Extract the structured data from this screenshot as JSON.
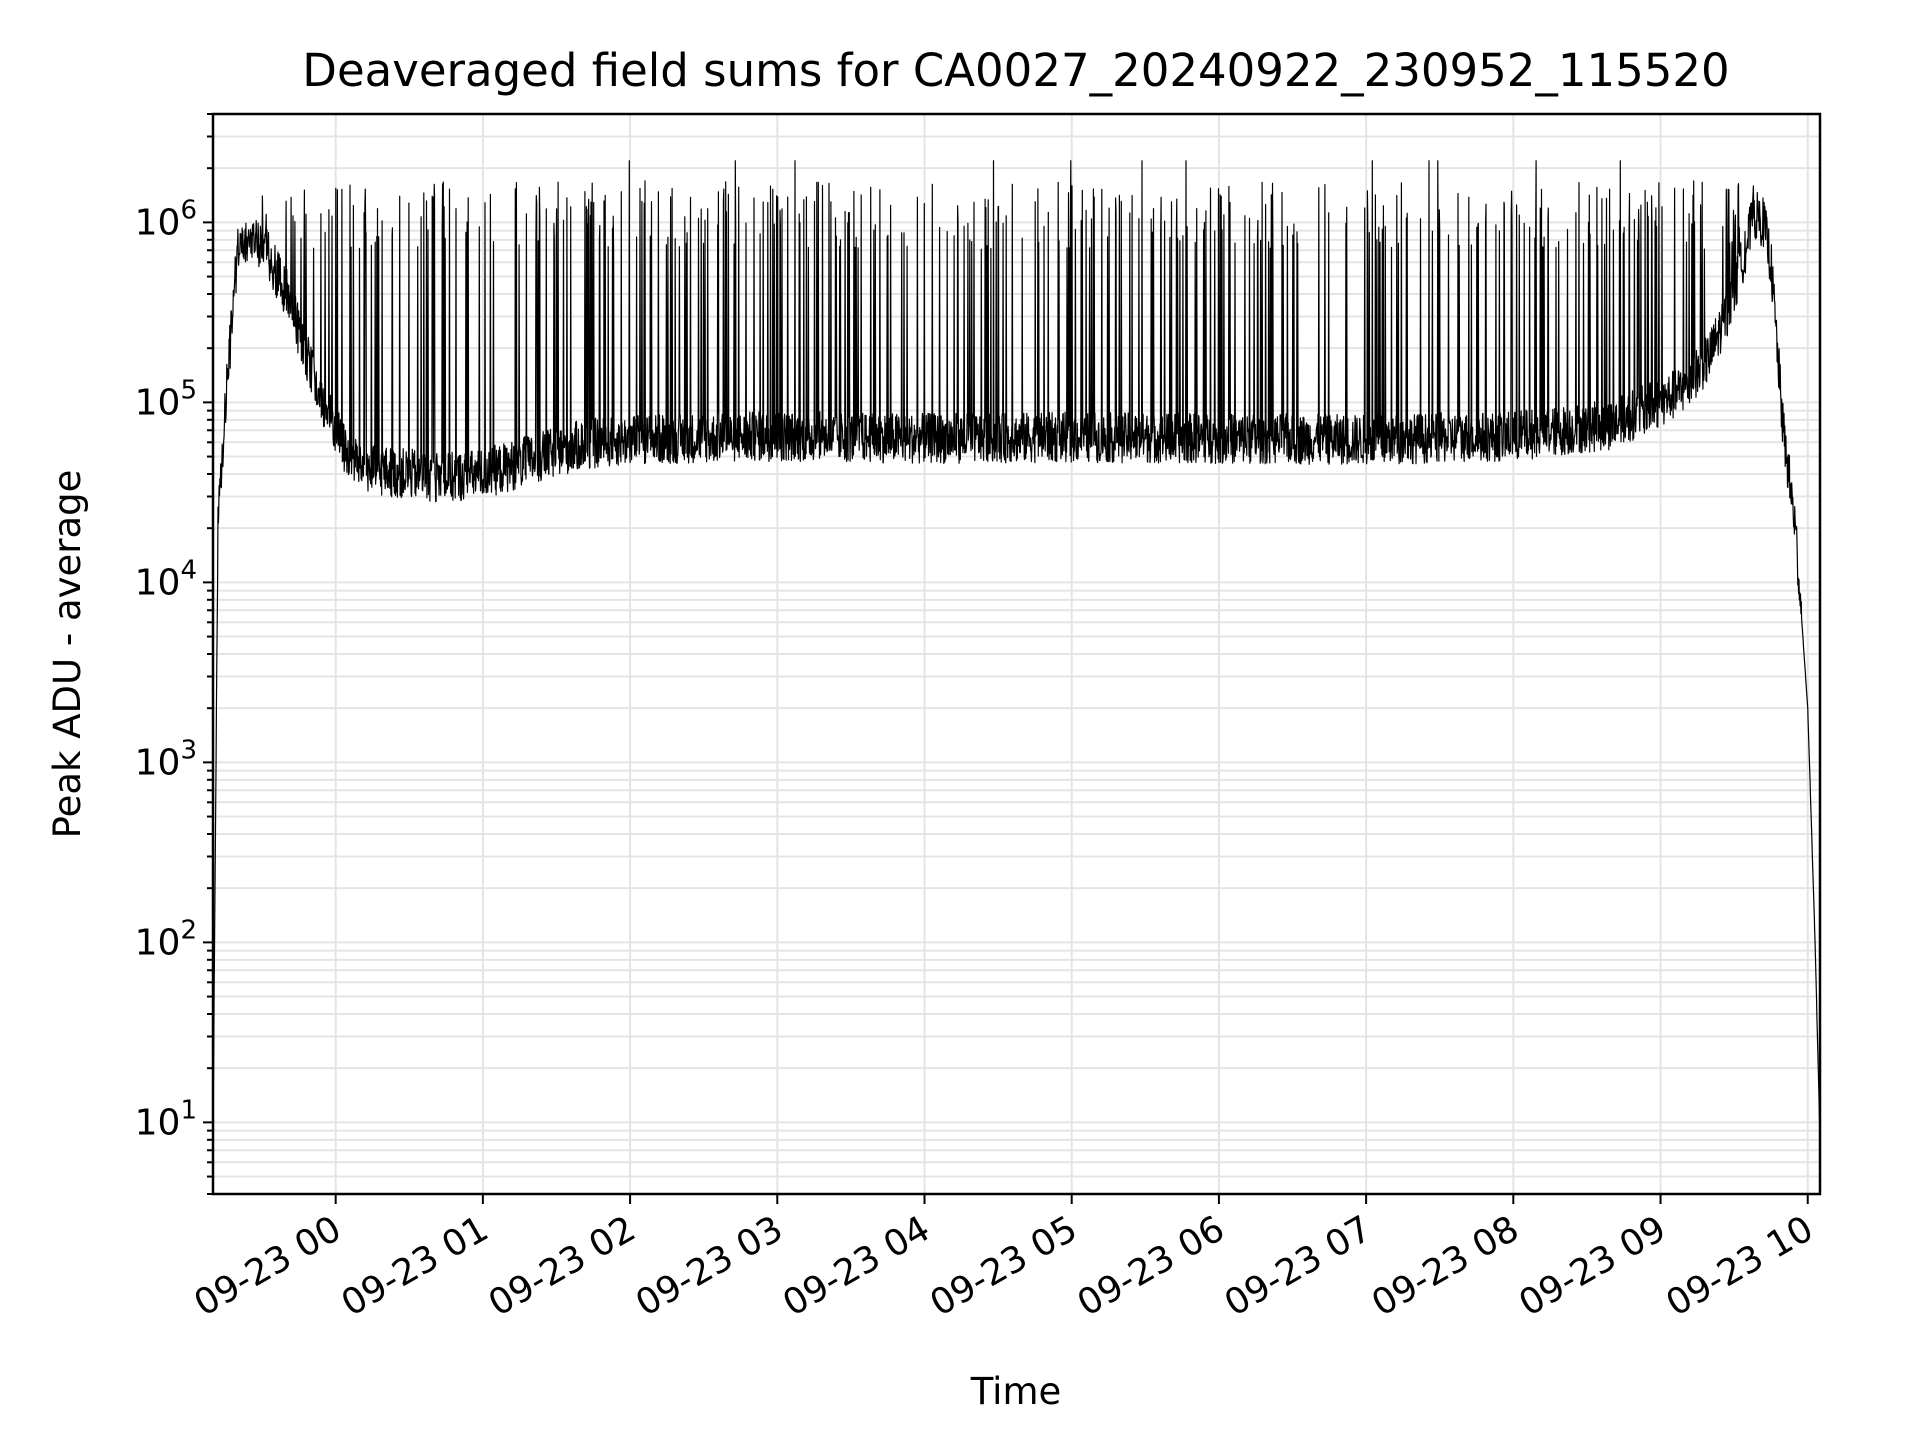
{
  "chart_data": {
    "type": "line",
    "title": "Deaveraged field sums for CA0027_20240922_230952_115520",
    "xlabel": "Time",
    "ylabel": "Peak ADU - average",
    "yscale": "log",
    "ylim": [
      4,
      4000000
    ],
    "xlim": [
      "2024-09-22 23:10",
      "2024-09-23 10:05"
    ],
    "x_ticks": [
      {
        "t": "2024-09-23 00:00",
        "label": "09-23 00"
      },
      {
        "t": "2024-09-23 01:00",
        "label": "09-23 01"
      },
      {
        "t": "2024-09-23 02:00",
        "label": "09-23 02"
      },
      {
        "t": "2024-09-23 03:00",
        "label": "09-23 03"
      },
      {
        "t": "2024-09-23 04:00",
        "label": "09-23 04"
      },
      {
        "t": "2024-09-23 05:00",
        "label": "09-23 05"
      },
      {
        "t": "2024-09-23 06:00",
        "label": "09-23 06"
      },
      {
        "t": "2024-09-23 07:00",
        "label": "09-23 07"
      },
      {
        "t": "2024-09-23 08:00",
        "label": "09-23 08"
      },
      {
        "t": "2024-09-23 09:00",
        "label": "09-23 09"
      },
      {
        "t": "2024-09-23 10:00",
        "label": "09-23 10"
      }
    ],
    "y_ticks": [
      {
        "value": 10,
        "base": "10",
        "exp": "1"
      },
      {
        "value": 100,
        "base": "10",
        "exp": "2"
      },
      {
        "value": 1000,
        "base": "10",
        "exp": "3"
      },
      {
        "value": 10000,
        "base": "10",
        "exp": "4"
      },
      {
        "value": 100000,
        "base": "10",
        "exp": "5"
      },
      {
        "value": 1000000,
        "base": "10",
        "exp": "6"
      }
    ],
    "grid": true,
    "series": [
      {
        "color": "#000000",
        "baseline": {
          "x": [
            "2024-09-22 23:10",
            "2024-09-22 23:12",
            "2024-09-22 23:15",
            "2024-09-22 23:18",
            "2024-09-22 23:20",
            "2024-09-22 23:25",
            "2024-09-22 23:30",
            "2024-09-22 23:35",
            "2024-09-22 23:40",
            "2024-09-22 23:45",
            "2024-09-22 23:50",
            "2024-09-22 23:55",
            "2024-09-23 00:00",
            "2024-09-23 00:05",
            "2024-09-23 00:15",
            "2024-09-23 00:30",
            "2024-09-23 00:45",
            "2024-09-23 01:00",
            "2024-09-23 01:20",
            "2024-09-23 01:40",
            "2024-09-23 02:00",
            "2024-09-23 03:00",
            "2024-09-23 04:00",
            "2024-09-23 05:00",
            "2024-09-23 06:00",
            "2024-09-23 07:00",
            "2024-09-23 08:00",
            "2024-09-23 08:40",
            "2024-09-23 09:00",
            "2024-09-23 09:10",
            "2024-09-23 09:20",
            "2024-09-23 09:30",
            "2024-09-23 09:38",
            "2024-09-23 09:42",
            "2024-09-23 09:45",
            "2024-09-23 09:50",
            "2024-09-23 09:55",
            "2024-09-23 10:00",
            "2024-09-23 10:03",
            "2024-09-23 10:05"
          ],
          "y": [
            8,
            20000,
            100000,
            300000,
            700000,
            800000,
            750000,
            550000,
            400000,
            250000,
            150000,
            100000,
            70000,
            50000,
            42000,
            40000,
            38000,
            40000,
            48000,
            58000,
            62000,
            65000,
            63000,
            64000,
            63000,
            62000,
            65000,
            75000,
            100000,
            120000,
            180000,
            400000,
            1100000,
            1000000,
            600000,
            70000,
            20000,
            2000,
            100,
            8
          ]
        },
        "spikes_start": "2024-09-22 23:30",
        "spikes_end": "2024-09-23 09:40",
        "spike_peak_max": 2200000,
        "spike_peak_typical": 1700000
      }
    ]
  }
}
